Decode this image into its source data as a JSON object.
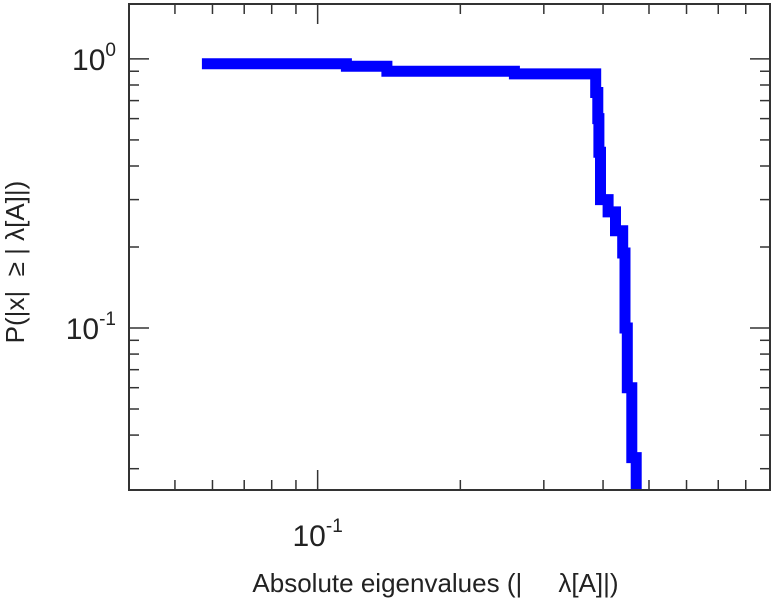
{
  "chart_data": {
    "type": "line",
    "title": "",
    "xlabel": "Absolute eigenvalues (|     λ[A]|)",
    "ylabel": "P(|x|  ≥ | λ[A]|)",
    "x_scale": "log",
    "y_scale": "log",
    "xlim": [
      0.04,
      0.9
    ],
    "ylim": [
      0.025,
      1.6
    ],
    "grid": false,
    "legend": "none",
    "x_tick_labels": [
      {
        "value": 0.1,
        "base": "10",
        "exp": "-1"
      }
    ],
    "y_tick_labels": [
      {
        "value": 1,
        "base": "10",
        "exp": "0"
      },
      {
        "value": 0.1,
        "base": "10",
        "exp": "-1"
      }
    ],
    "line_color": "#0000ff",
    "series": [
      {
        "step": "post",
        "x": [
          0.057,
          0.115,
          0.14,
          0.26,
          0.38,
          0.386,
          0.39,
          0.392,
          0.395,
          0.41,
          0.425,
          0.44,
          0.445,
          0.45,
          0.46,
          0.47
        ],
        "y": [
          0.96,
          0.94,
          0.9,
          0.88,
          0.88,
          0.75,
          0.6,
          0.45,
          0.3,
          0.27,
          0.23,
          0.19,
          0.1,
          0.06,
          0.033,
          0.025
        ]
      }
    ]
  }
}
